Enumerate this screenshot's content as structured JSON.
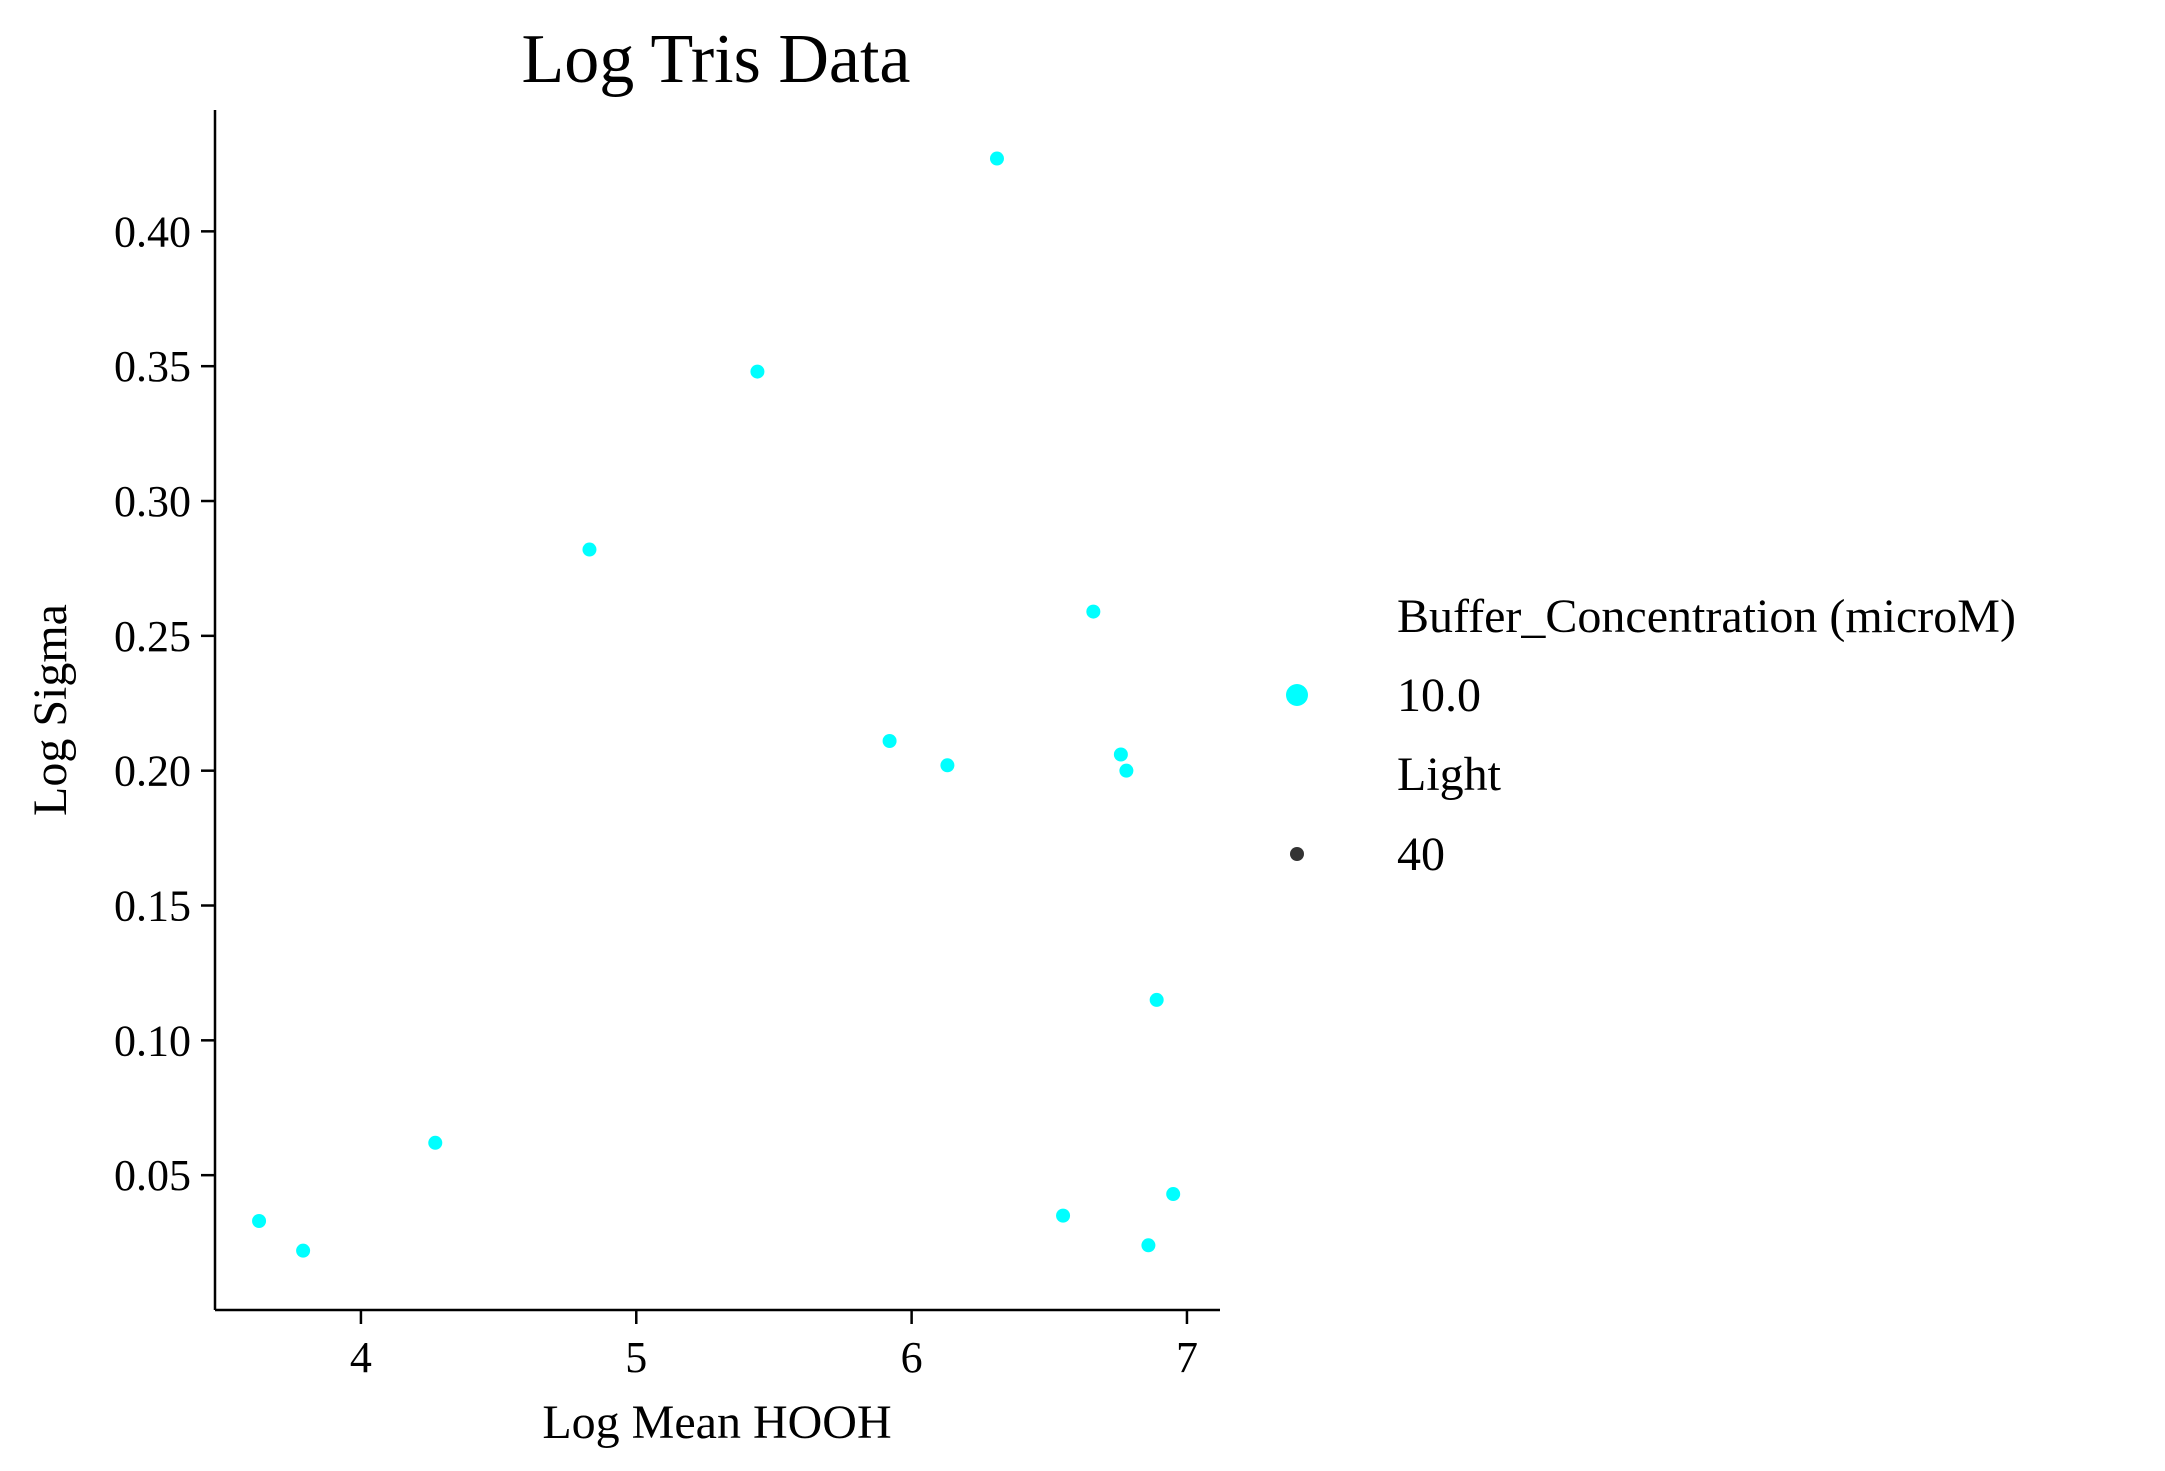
{
  "chart_data": {
    "type": "scatter",
    "title": "Log Tris Data",
    "xlabel": "Log Mean HOOH",
    "ylabel": "Log Sigma",
    "xlim": [
      3.47,
      7.12
    ],
    "ylim": [
      0.0,
      0.445
    ],
    "xticks": [
      4,
      5,
      6,
      7
    ],
    "yticks": [
      0.05,
      0.1,
      0.15,
      0.2,
      0.25,
      0.3,
      0.35,
      0.4
    ],
    "xtick_labels": [
      "4",
      "5",
      "6",
      "7"
    ],
    "ytick_labels": [
      "0.05",
      "0.10",
      "0.15",
      "0.20",
      "0.25",
      "0.30",
      "0.35",
      "0.40"
    ],
    "grid": false,
    "legend_placement": "right",
    "point_color": "#00ffff",
    "legend_marker_color": "#333333",
    "legend": {
      "groups": [
        {
          "title": "Buffer_Concentration (microM)",
          "entries": [
            {
              "label": "10.0",
              "color": "#00ffff",
              "size": "large"
            }
          ]
        },
        {
          "title": "Light",
          "entries": [
            {
              "label": "40",
              "color": "#333333",
              "size": "small"
            }
          ]
        }
      ]
    },
    "series": [
      {
        "x": [
          3.63,
          3.79,
          4.27,
          4.83,
          5.44,
          5.92,
          6.13,
          6.31,
          6.55,
          6.66,
          6.76,
          6.78,
          6.86,
          6.89,
          6.95
        ],
        "y": [
          0.033,
          0.022,
          0.062,
          0.282,
          0.348,
          0.211,
          0.202,
          0.427,
          0.035,
          0.259,
          0.206,
          0.2,
          0.024,
          0.115,
          0.043
        ]
      }
    ]
  }
}
